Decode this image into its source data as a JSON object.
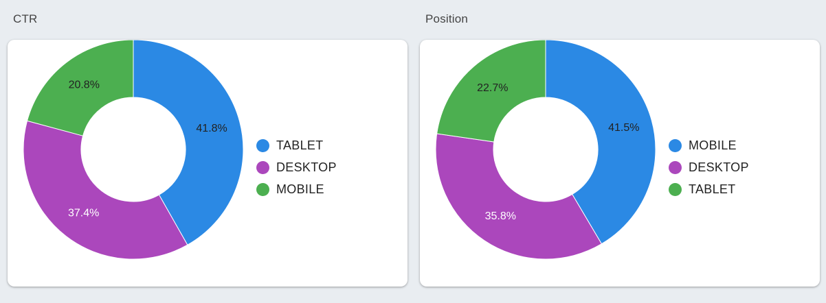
{
  "panels": [
    {
      "title": "CTR",
      "chart_data": {
        "type": "pie",
        "categories": [
          "TABLET",
          "DESKTOP",
          "MOBILE"
        ],
        "values": [
          41.8,
          37.4,
          20.8
        ],
        "labels": [
          "41.8%",
          "37.4%",
          "20.8%"
        ],
        "colors": [
          "#2b89e4",
          "#ab47bc",
          "#4caf50"
        ],
        "legend": [
          "TABLET",
          "DESKTOP",
          "MOBILE"
        ],
        "legend_position": "right"
      }
    },
    {
      "title": "Position",
      "chart_data": {
        "type": "pie",
        "categories": [
          "MOBILE",
          "DESKTOP",
          "TABLET"
        ],
        "values": [
          41.5,
          35.8,
          22.7
        ],
        "labels": [
          "41.5%",
          "35.8%",
          "22.7%"
        ],
        "colors": [
          "#2b89e4",
          "#ab47bc",
          "#4caf50"
        ],
        "legend": [
          "MOBILE",
          "DESKTOP",
          "TABLET"
        ],
        "legend_position": "right"
      }
    }
  ]
}
